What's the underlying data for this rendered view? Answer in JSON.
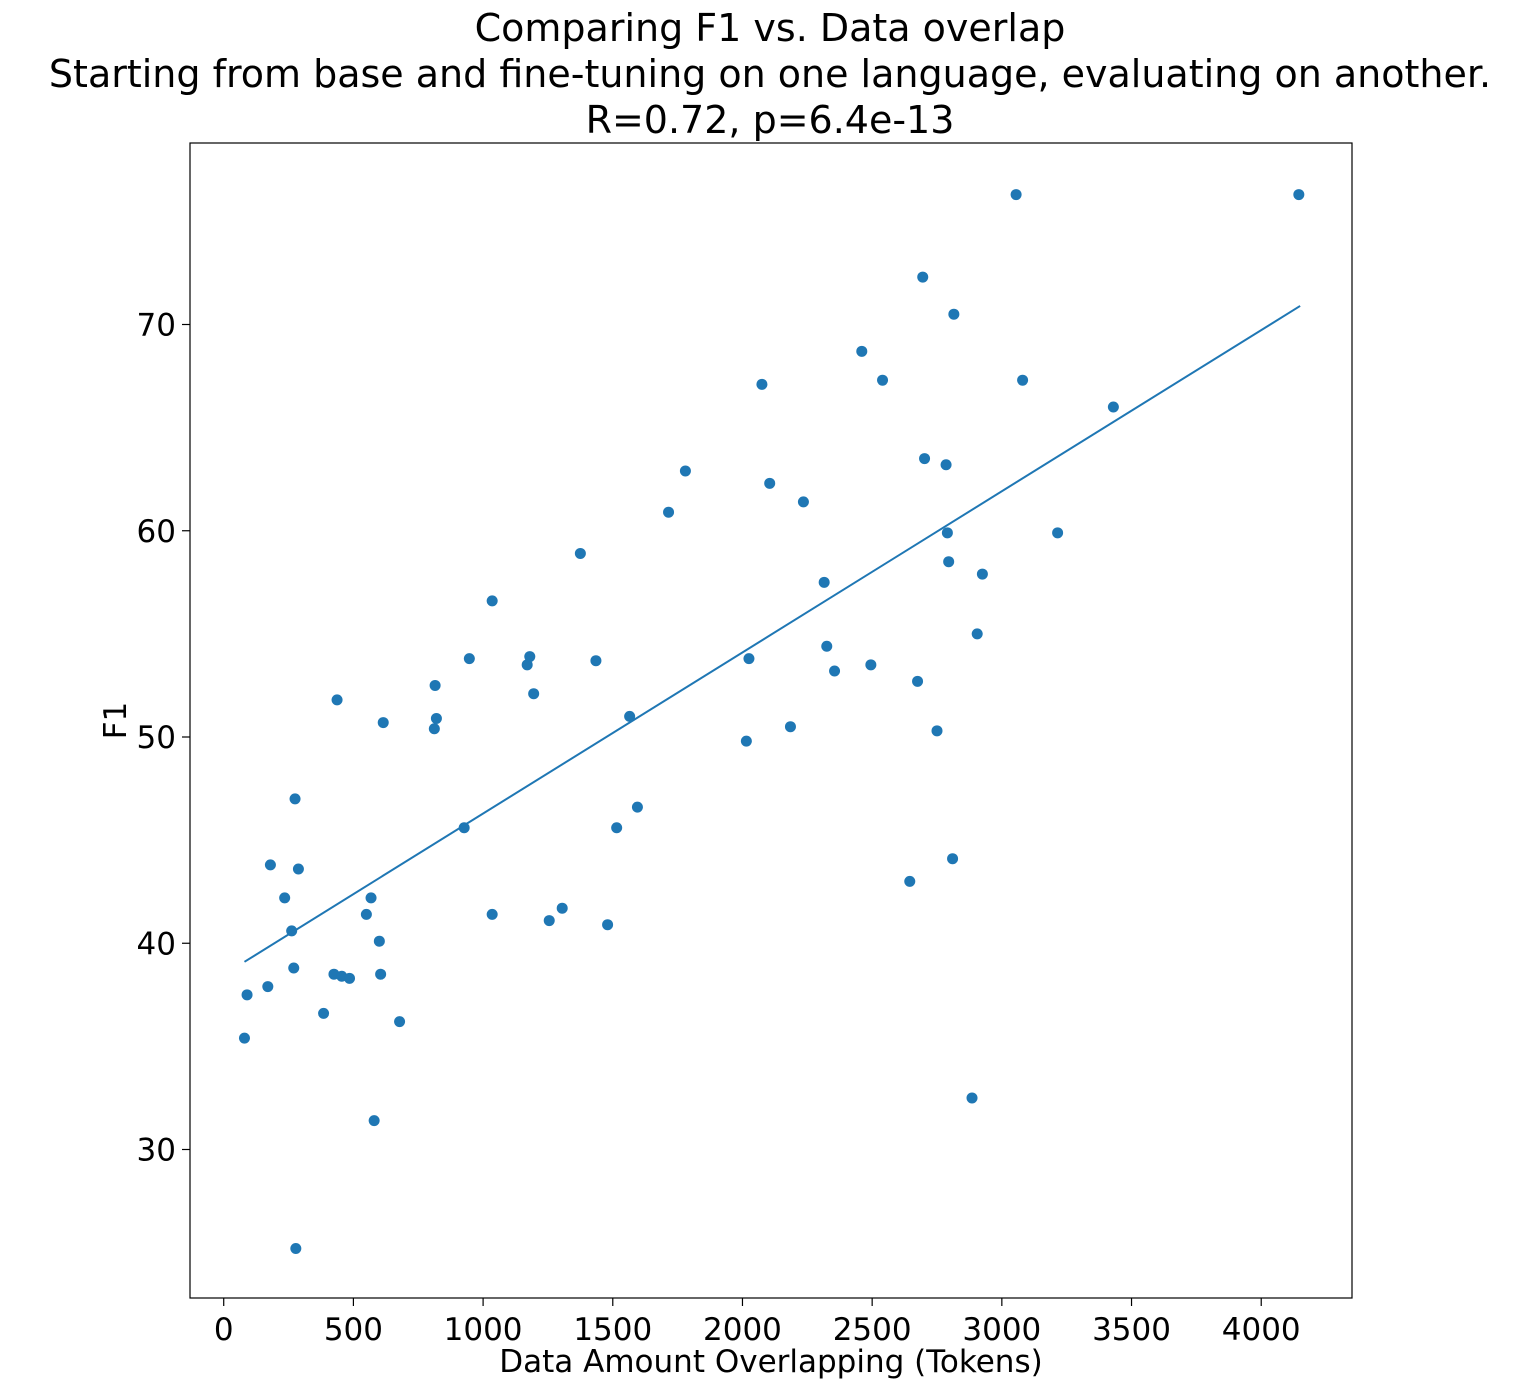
{
  "chart_data": {
    "type": "scatter",
    "title_lines": [
      "Comparing F1 vs. Data overlap",
      "Starting from base and fine-tuning on one language, evaluating on another.",
      "R=0.72, p=6.4e-13"
    ],
    "xlabel": "Data Amount Overlapping (Tokens)",
    "ylabel": "F1",
    "xlim": [
      -130,
      4350
    ],
    "ylim": [
      22.8,
      78.8
    ],
    "xticks": [
      0,
      500,
      1000,
      1500,
      2000,
      2500,
      3000,
      3500,
      4000
    ],
    "yticks": [
      30,
      40,
      50,
      60,
      70
    ],
    "grid": false,
    "colors": {
      "points": "#1f77b4",
      "fit_line": "#1f77b4",
      "axes": "#000000"
    },
    "fit_line": {
      "x": [
        80,
        4150
      ],
      "y": [
        39.1,
        70.9
      ]
    },
    "points": [
      {
        "x": 80,
        "y": 35.4
      },
      {
        "x": 90,
        "y": 37.5
      },
      {
        "x": 170,
        "y": 37.9
      },
      {
        "x": 180,
        "y": 43.8
      },
      {
        "x": 235,
        "y": 42.2
      },
      {
        "x": 262,
        "y": 40.6
      },
      {
        "x": 270,
        "y": 38.8
      },
      {
        "x": 275,
        "y": 47.0
      },
      {
        "x": 278,
        "y": 25.2
      },
      {
        "x": 288,
        "y": 43.6
      },
      {
        "x": 385,
        "y": 36.6
      },
      {
        "x": 425,
        "y": 38.5
      },
      {
        "x": 437,
        "y": 51.8
      },
      {
        "x": 455,
        "y": 38.4
      },
      {
        "x": 485,
        "y": 38.3
      },
      {
        "x": 550,
        "y": 41.4
      },
      {
        "x": 568,
        "y": 42.2
      },
      {
        "x": 580,
        "y": 31.4
      },
      {
        "x": 600,
        "y": 40.1
      },
      {
        "x": 605,
        "y": 38.5
      },
      {
        "x": 615,
        "y": 50.7
      },
      {
        "x": 678,
        "y": 36.2
      },
      {
        "x": 812,
        "y": 50.4
      },
      {
        "x": 815,
        "y": 52.5
      },
      {
        "x": 820,
        "y": 50.9
      },
      {
        "x": 927,
        "y": 45.6
      },
      {
        "x": 947,
        "y": 53.8
      },
      {
        "x": 1035,
        "y": 56.6
      },
      {
        "x": 1035,
        "y": 41.4
      },
      {
        "x": 1170,
        "y": 53.5
      },
      {
        "x": 1180,
        "y": 53.9
      },
      {
        "x": 1195,
        "y": 52.1
      },
      {
        "x": 1255,
        "y": 41.1
      },
      {
        "x": 1305,
        "y": 41.7
      },
      {
        "x": 1375,
        "y": 58.9
      },
      {
        "x": 1435,
        "y": 53.7
      },
      {
        "x": 1480,
        "y": 40.9
      },
      {
        "x": 1515,
        "y": 45.6
      },
      {
        "x": 1565,
        "y": 51.0
      },
      {
        "x": 1595,
        "y": 46.6
      },
      {
        "x": 1715,
        "y": 60.9
      },
      {
        "x": 1780,
        "y": 62.9
      },
      {
        "x": 2015,
        "y": 49.8
      },
      {
        "x": 2025,
        "y": 53.8
      },
      {
        "x": 2075,
        "y": 67.1
      },
      {
        "x": 2105,
        "y": 62.3
      },
      {
        "x": 2185,
        "y": 50.5
      },
      {
        "x": 2235,
        "y": 61.4
      },
      {
        "x": 2315,
        "y": 57.5
      },
      {
        "x": 2325,
        "y": 54.4
      },
      {
        "x": 2355,
        "y": 53.2
      },
      {
        "x": 2460,
        "y": 68.7
      },
      {
        "x": 2495,
        "y": 53.5
      },
      {
        "x": 2540,
        "y": 67.3
      },
      {
        "x": 2645,
        "y": 43.0
      },
      {
        "x": 2675,
        "y": 52.7
      },
      {
        "x": 2695,
        "y": 72.3
      },
      {
        "x": 2702,
        "y": 63.5
      },
      {
        "x": 2750,
        "y": 50.3
      },
      {
        "x": 2785,
        "y": 63.2
      },
      {
        "x": 2790,
        "y": 59.9
      },
      {
        "x": 2795,
        "y": 58.5
      },
      {
        "x": 2810,
        "y": 44.1
      },
      {
        "x": 2815,
        "y": 70.5
      },
      {
        "x": 2885,
        "y": 32.5
      },
      {
        "x": 2905,
        "y": 55.0
      },
      {
        "x": 2925,
        "y": 57.9
      },
      {
        "x": 3055,
        "y": 76.3
      },
      {
        "x": 3080,
        "y": 67.3
      },
      {
        "x": 3215,
        "y": 59.9
      },
      {
        "x": 3430,
        "y": 66.0
      },
      {
        "x": 4145,
        "y": 76.3
      }
    ]
  }
}
